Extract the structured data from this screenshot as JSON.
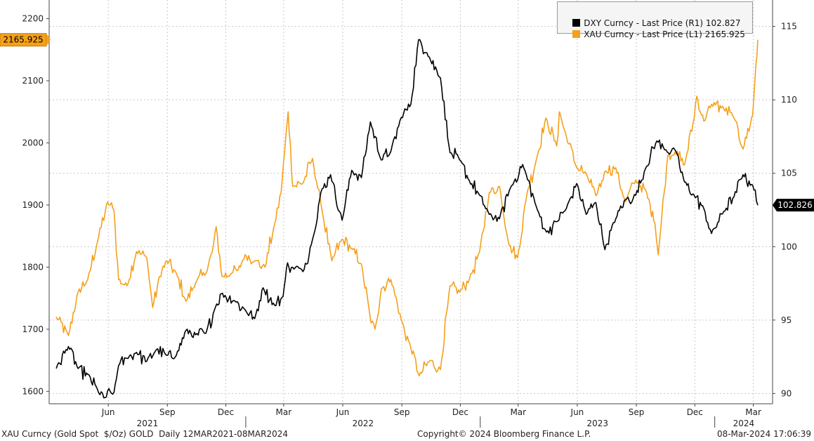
{
  "chart_data": {
    "type": "line",
    "legend": {
      "placement": "top-right",
      "entries": [
        {
          "label": "DXY Curncy - Last Price (R1)",
          "value": "102.827",
          "color": "#000000"
        },
        {
          "label": "XAU Curncy - Last Price (L1)",
          "value": "2165.925",
          "color": "#f5a01a"
        }
      ]
    },
    "left_axis": {
      "ticks": [
        1600,
        1700,
        1800,
        1900,
        2000,
        2100,
        2200
      ],
      "ylim": [
        1580,
        2230
      ],
      "last_badge": "2165.925"
    },
    "right_axis": {
      "ticks": [
        90,
        95,
        100,
        105,
        110,
        115
      ],
      "ylim": [
        89.3,
        116.8
      ],
      "last_badge": "102.826"
    },
    "x_month_labels": [
      "Jun",
      "Sep",
      "Dec",
      "Mar",
      "Jun",
      "Sep",
      "Dec",
      "Mar",
      "Jun",
      "Sep",
      "Dec",
      "Mar"
    ],
    "x_year_labels": [
      "2021",
      "2022",
      "2023",
      "2024"
    ],
    "grid": true,
    "series": [
      {
        "name": "XAU Curncy - Last Price",
        "axis": "left",
        "color": "#f5a01a",
        "points": [
          [
            "2021-03-12",
            1720
          ],
          [
            "2021-03-31",
            1690
          ],
          [
            "2021-04-15",
            1760
          ],
          [
            "2021-04-30",
            1780
          ],
          [
            "2021-05-15",
            1840
          ],
          [
            "2021-05-31",
            1905
          ],
          [
            "2021-06-10",
            1890
          ],
          [
            "2021-06-17",
            1780
          ],
          [
            "2021-06-30",
            1770
          ],
          [
            "2021-07-15",
            1825
          ],
          [
            "2021-07-31",
            1815
          ],
          [
            "2021-08-09",
            1735
          ],
          [
            "2021-08-20",
            1785
          ],
          [
            "2021-08-31",
            1810
          ],
          [
            "2021-09-15",
            1790
          ],
          [
            "2021-09-30",
            1745
          ],
          [
            "2021-10-15",
            1775
          ],
          [
            "2021-10-31",
            1790
          ],
          [
            "2021-11-10",
            1825
          ],
          [
            "2021-11-16",
            1865
          ],
          [
            "2021-11-25",
            1785
          ],
          [
            "2021-12-10",
            1790
          ],
          [
            "2021-12-20",
            1795
          ],
          [
            "2021-12-31",
            1820
          ],
          [
            "2022-01-15",
            1810
          ],
          [
            "2022-01-31",
            1800
          ],
          [
            "2022-02-15",
            1870
          ],
          [
            "2022-02-25",
            1920
          ],
          [
            "2022-03-08",
            2050
          ],
          [
            "2022-03-15",
            1930
          ],
          [
            "2022-03-31",
            1935
          ],
          [
            "2022-04-15",
            1975
          ],
          [
            "2022-04-29",
            1895
          ],
          [
            "2022-05-15",
            1810
          ],
          [
            "2022-05-31",
            1845
          ],
          [
            "2022-06-15",
            1830
          ],
          [
            "2022-06-30",
            1805
          ],
          [
            "2022-07-15",
            1710
          ],
          [
            "2022-07-21",
            1700
          ],
          [
            "2022-07-31",
            1765
          ],
          [
            "2022-08-15",
            1780
          ],
          [
            "2022-08-31",
            1715
          ],
          [
            "2022-09-15",
            1670
          ],
          [
            "2022-09-28",
            1625
          ],
          [
            "2022-10-15",
            1650
          ],
          [
            "2022-10-31",
            1635
          ],
          [
            "2022-11-15",
            1770
          ],
          [
            "2022-11-30",
            1760
          ],
          [
            "2022-12-15",
            1780
          ],
          [
            "2022-12-31",
            1825
          ],
          [
            "2023-01-15",
            1920
          ],
          [
            "2023-01-31",
            1930
          ],
          [
            "2023-02-15",
            1835
          ],
          [
            "2023-02-28",
            1815
          ],
          [
            "2023-03-15",
            1920
          ],
          [
            "2023-03-31",
            1980
          ],
          [
            "2023-04-13",
            2040
          ],
          [
            "2023-04-30",
            1995
          ],
          [
            "2023-05-04",
            2050
          ],
          [
            "2023-05-15",
            2010
          ],
          [
            "2023-05-31",
            1960
          ],
          [
            "2023-06-15",
            1950
          ],
          [
            "2023-06-30",
            1915
          ],
          [
            "2023-07-15",
            1955
          ],
          [
            "2023-07-31",
            1960
          ],
          [
            "2023-08-15",
            1905
          ],
          [
            "2023-08-31",
            1940
          ],
          [
            "2023-09-15",
            1925
          ],
          [
            "2023-09-30",
            1870
          ],
          [
            "2023-10-05",
            1820
          ],
          [
            "2023-10-20",
            1980
          ],
          [
            "2023-10-31",
            1985
          ],
          [
            "2023-11-15",
            1965
          ],
          [
            "2023-11-30",
            2040
          ],
          [
            "2023-12-04",
            2075
          ],
          [
            "2023-12-15",
            2035
          ],
          [
            "2023-12-31",
            2065
          ],
          [
            "2024-01-15",
            2055
          ],
          [
            "2024-01-31",
            2040
          ],
          [
            "2024-02-14",
            1990
          ],
          [
            "2024-02-29",
            2045
          ],
          [
            "2024-03-05",
            2125
          ],
          [
            "2024-03-08",
            2165.925
          ]
        ]
      },
      {
        "name": "DXY Curncy - Last Price",
        "axis": "right",
        "color": "#000000",
        "points": [
          [
            "2021-03-12",
            91.7
          ],
          [
            "2021-03-31",
            93.2
          ],
          [
            "2021-04-15",
            91.7
          ],
          [
            "2021-04-30",
            91.3
          ],
          [
            "2021-05-15",
            90.3
          ],
          [
            "2021-05-25",
            89.7
          ],
          [
            "2021-06-10",
            90.1
          ],
          [
            "2021-06-17",
            91.9
          ],
          [
            "2021-06-30",
            92.4
          ],
          [
            "2021-07-15",
            92.8
          ],
          [
            "2021-07-31",
            92.2
          ],
          [
            "2021-08-15",
            93.0
          ],
          [
            "2021-08-31",
            92.6
          ],
          [
            "2021-09-15",
            92.6
          ],
          [
            "2021-09-30",
            94.3
          ],
          [
            "2021-10-15",
            94.0
          ],
          [
            "2021-10-31",
            94.1
          ],
          [
            "2021-11-15",
            95.9
          ],
          [
            "2021-11-24",
            96.8
          ],
          [
            "2021-12-15",
            96.3
          ],
          [
            "2021-12-31",
            95.7
          ],
          [
            "2022-01-15",
            95.1
          ],
          [
            "2022-01-28",
            97.2
          ],
          [
            "2022-02-15",
            96.0
          ],
          [
            "2022-02-28",
            96.6
          ],
          [
            "2022-03-07",
            98.9
          ],
          [
            "2022-03-15",
            98.6
          ],
          [
            "2022-03-31",
            98.3
          ],
          [
            "2022-04-15",
            100.5
          ],
          [
            "2022-04-28",
            103.7
          ],
          [
            "2022-05-13",
            104.9
          ],
          [
            "2022-05-31",
            101.8
          ],
          [
            "2022-06-15",
            105.2
          ],
          [
            "2022-06-30",
            104.7
          ],
          [
            "2022-07-14",
            108.5
          ],
          [
            "2022-07-31",
            105.9
          ],
          [
            "2022-08-15",
            106.5
          ],
          [
            "2022-08-31",
            108.8
          ],
          [
            "2022-09-15",
            109.7
          ],
          [
            "2022-09-27",
            114.1
          ],
          [
            "2022-10-10",
            113.2
          ],
          [
            "2022-10-31",
            111.5
          ],
          [
            "2022-11-15",
            106.4
          ],
          [
            "2022-11-30",
            105.9
          ],
          [
            "2022-12-15",
            104.5
          ],
          [
            "2022-12-31",
            103.5
          ],
          [
            "2023-01-15",
            102.2
          ],
          [
            "2023-01-31",
            101.9
          ],
          [
            "2023-02-15",
            103.8
          ],
          [
            "2023-03-08",
            105.6
          ],
          [
            "2023-03-31",
            102.5
          ],
          [
            "2023-04-14",
            101.0
          ],
          [
            "2023-04-30",
            101.7
          ],
          [
            "2023-05-15",
            102.6
          ],
          [
            "2023-05-31",
            104.3
          ],
          [
            "2023-06-15",
            102.2
          ],
          [
            "2023-06-30",
            103.0
          ],
          [
            "2023-07-14",
            99.8
          ],
          [
            "2023-07-31",
            101.9
          ],
          [
            "2023-08-15",
            103.2
          ],
          [
            "2023-08-31",
            103.5
          ],
          [
            "2023-09-15",
            105.3
          ],
          [
            "2023-10-03",
            107.2
          ],
          [
            "2023-10-15",
            106.6
          ],
          [
            "2023-10-31",
            106.6
          ],
          [
            "2023-11-15",
            104.4
          ],
          [
            "2023-11-30",
            103.5
          ],
          [
            "2023-12-15",
            102.6
          ],
          [
            "2023-12-27",
            100.9
          ],
          [
            "2024-01-15",
            102.4
          ],
          [
            "2024-01-31",
            103.4
          ],
          [
            "2024-02-14",
            104.9
          ],
          [
            "2024-02-29",
            104.2
          ],
          [
            "2024-03-08",
            102.827
          ]
        ]
      }
    ]
  },
  "footer": {
    "left": "XAU Curncy (Gold Spot  $/Oz) GOLD  Daily 12MAR2021-08MAR2024",
    "center": "Copyright© 2024 Bloomberg Finance L.P.",
    "right": "08-Mar-2024 17:06:39"
  }
}
